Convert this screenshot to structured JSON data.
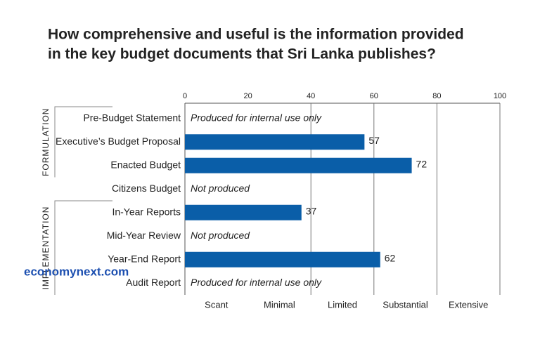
{
  "chart_data": {
    "type": "bar",
    "orientation": "horizontal",
    "title": [
      "How comprehensive and useful is the information provided",
      "in the key budget documents that Sri Lanka publishes?"
    ],
    "categories": [
      "Pre-Budget Statement",
      "Executive’s Budget Proposal",
      "Enacted Budget",
      "Citizens Budget",
      "In-Year Reports",
      "Mid-Year Review",
      "Year-End Report",
      "Audit Report"
    ],
    "values": [
      null,
      57,
      72,
      null,
      37,
      null,
      62,
      null
    ],
    "notes": [
      "Produced for internal use only",
      null,
      null,
      "Not produced",
      null,
      "Not produced",
      null,
      "Produced for internal use only"
    ],
    "color": "#0a5ea8",
    "xlim": [
      0,
      100
    ],
    "xticks": [
      0,
      20,
      40,
      60,
      80,
      100
    ],
    "grid_at": [
      40,
      60,
      80,
      100
    ],
    "bands": [
      {
        "label": "Scant",
        "range": [
          0,
          20
        ]
      },
      {
        "label": "Minimal",
        "range": [
          20,
          40
        ]
      },
      {
        "label": "Limited",
        "range": [
          40,
          60
        ]
      },
      {
        "label": "Substantial",
        "range": [
          60,
          80
        ]
      },
      {
        "label": "Extensive",
        "range": [
          80,
          100
        ]
      }
    ],
    "groups": [
      {
        "label": "FORMULATION",
        "rows": [
          0,
          2
        ]
      },
      {
        "label": "IMPLEMENTATION",
        "rows": [
          4,
          7
        ]
      }
    ],
    "watermark": "economynext.com"
  }
}
